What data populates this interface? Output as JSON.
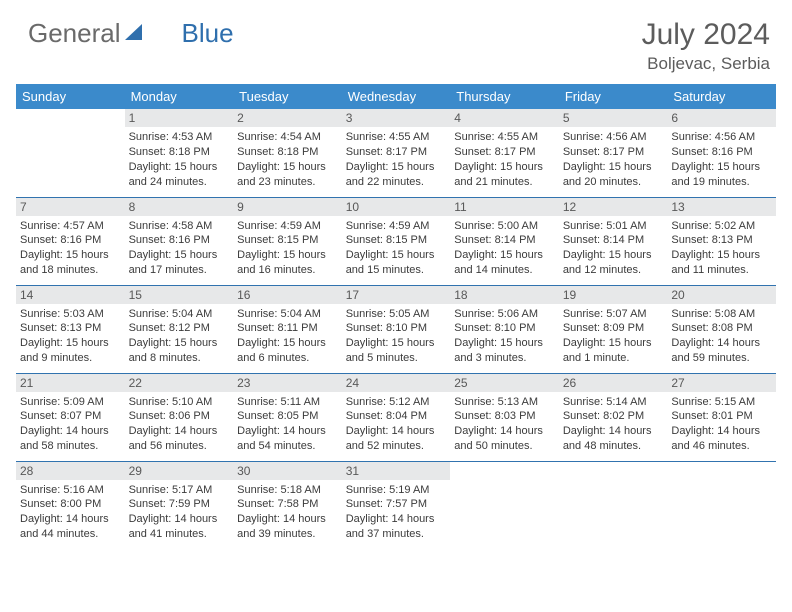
{
  "logo": {
    "word1": "General",
    "word2": "Blue"
  },
  "title": "July 2024",
  "location": "Boljevac, Serbia",
  "colors": {
    "header_bg": "#3b8acb",
    "header_fg": "#ffffff",
    "daynum_bg": "#e7e8e9",
    "daynum_fg": "#585858",
    "row_border": "#3173af",
    "text": "#3b3b3b",
    "title_fg": "#5c5c5c",
    "logo_gray": "#6a6a6a",
    "logo_blue": "#2f6fad"
  },
  "daysOfWeek": [
    "Sunday",
    "Monday",
    "Tuesday",
    "Wednesday",
    "Thursday",
    "Friday",
    "Saturday"
  ],
  "weeks": [
    [
      {
        "day": "",
        "sunrise": "",
        "sunset": "",
        "daylight1": "",
        "daylight2": ""
      },
      {
        "day": "1",
        "sunrise": "Sunrise: 4:53 AM",
        "sunset": "Sunset: 8:18 PM",
        "daylight1": "Daylight: 15 hours",
        "daylight2": "and 24 minutes."
      },
      {
        "day": "2",
        "sunrise": "Sunrise: 4:54 AM",
        "sunset": "Sunset: 8:18 PM",
        "daylight1": "Daylight: 15 hours",
        "daylight2": "and 23 minutes."
      },
      {
        "day": "3",
        "sunrise": "Sunrise: 4:55 AM",
        "sunset": "Sunset: 8:17 PM",
        "daylight1": "Daylight: 15 hours",
        "daylight2": "and 22 minutes."
      },
      {
        "day": "4",
        "sunrise": "Sunrise: 4:55 AM",
        "sunset": "Sunset: 8:17 PM",
        "daylight1": "Daylight: 15 hours",
        "daylight2": "and 21 minutes."
      },
      {
        "day": "5",
        "sunrise": "Sunrise: 4:56 AM",
        "sunset": "Sunset: 8:17 PM",
        "daylight1": "Daylight: 15 hours",
        "daylight2": "and 20 minutes."
      },
      {
        "day": "6",
        "sunrise": "Sunrise: 4:56 AM",
        "sunset": "Sunset: 8:16 PM",
        "daylight1": "Daylight: 15 hours",
        "daylight2": "and 19 minutes."
      }
    ],
    [
      {
        "day": "7",
        "sunrise": "Sunrise: 4:57 AM",
        "sunset": "Sunset: 8:16 PM",
        "daylight1": "Daylight: 15 hours",
        "daylight2": "and 18 minutes."
      },
      {
        "day": "8",
        "sunrise": "Sunrise: 4:58 AM",
        "sunset": "Sunset: 8:16 PM",
        "daylight1": "Daylight: 15 hours",
        "daylight2": "and 17 minutes."
      },
      {
        "day": "9",
        "sunrise": "Sunrise: 4:59 AM",
        "sunset": "Sunset: 8:15 PM",
        "daylight1": "Daylight: 15 hours",
        "daylight2": "and 16 minutes."
      },
      {
        "day": "10",
        "sunrise": "Sunrise: 4:59 AM",
        "sunset": "Sunset: 8:15 PM",
        "daylight1": "Daylight: 15 hours",
        "daylight2": "and 15 minutes."
      },
      {
        "day": "11",
        "sunrise": "Sunrise: 5:00 AM",
        "sunset": "Sunset: 8:14 PM",
        "daylight1": "Daylight: 15 hours",
        "daylight2": "and 14 minutes."
      },
      {
        "day": "12",
        "sunrise": "Sunrise: 5:01 AM",
        "sunset": "Sunset: 8:14 PM",
        "daylight1": "Daylight: 15 hours",
        "daylight2": "and 12 minutes."
      },
      {
        "day": "13",
        "sunrise": "Sunrise: 5:02 AM",
        "sunset": "Sunset: 8:13 PM",
        "daylight1": "Daylight: 15 hours",
        "daylight2": "and 11 minutes."
      }
    ],
    [
      {
        "day": "14",
        "sunrise": "Sunrise: 5:03 AM",
        "sunset": "Sunset: 8:13 PM",
        "daylight1": "Daylight: 15 hours",
        "daylight2": "and 9 minutes."
      },
      {
        "day": "15",
        "sunrise": "Sunrise: 5:04 AM",
        "sunset": "Sunset: 8:12 PM",
        "daylight1": "Daylight: 15 hours",
        "daylight2": "and 8 minutes."
      },
      {
        "day": "16",
        "sunrise": "Sunrise: 5:04 AM",
        "sunset": "Sunset: 8:11 PM",
        "daylight1": "Daylight: 15 hours",
        "daylight2": "and 6 minutes."
      },
      {
        "day": "17",
        "sunrise": "Sunrise: 5:05 AM",
        "sunset": "Sunset: 8:10 PM",
        "daylight1": "Daylight: 15 hours",
        "daylight2": "and 5 minutes."
      },
      {
        "day": "18",
        "sunrise": "Sunrise: 5:06 AM",
        "sunset": "Sunset: 8:10 PM",
        "daylight1": "Daylight: 15 hours",
        "daylight2": "and 3 minutes."
      },
      {
        "day": "19",
        "sunrise": "Sunrise: 5:07 AM",
        "sunset": "Sunset: 8:09 PM",
        "daylight1": "Daylight: 15 hours",
        "daylight2": "and 1 minute."
      },
      {
        "day": "20",
        "sunrise": "Sunrise: 5:08 AM",
        "sunset": "Sunset: 8:08 PM",
        "daylight1": "Daylight: 14 hours",
        "daylight2": "and 59 minutes."
      }
    ],
    [
      {
        "day": "21",
        "sunrise": "Sunrise: 5:09 AM",
        "sunset": "Sunset: 8:07 PM",
        "daylight1": "Daylight: 14 hours",
        "daylight2": "and 58 minutes."
      },
      {
        "day": "22",
        "sunrise": "Sunrise: 5:10 AM",
        "sunset": "Sunset: 8:06 PM",
        "daylight1": "Daylight: 14 hours",
        "daylight2": "and 56 minutes."
      },
      {
        "day": "23",
        "sunrise": "Sunrise: 5:11 AM",
        "sunset": "Sunset: 8:05 PM",
        "daylight1": "Daylight: 14 hours",
        "daylight2": "and 54 minutes."
      },
      {
        "day": "24",
        "sunrise": "Sunrise: 5:12 AM",
        "sunset": "Sunset: 8:04 PM",
        "daylight1": "Daylight: 14 hours",
        "daylight2": "and 52 minutes."
      },
      {
        "day": "25",
        "sunrise": "Sunrise: 5:13 AM",
        "sunset": "Sunset: 8:03 PM",
        "daylight1": "Daylight: 14 hours",
        "daylight2": "and 50 minutes."
      },
      {
        "day": "26",
        "sunrise": "Sunrise: 5:14 AM",
        "sunset": "Sunset: 8:02 PM",
        "daylight1": "Daylight: 14 hours",
        "daylight2": "and 48 minutes."
      },
      {
        "day": "27",
        "sunrise": "Sunrise: 5:15 AM",
        "sunset": "Sunset: 8:01 PM",
        "daylight1": "Daylight: 14 hours",
        "daylight2": "and 46 minutes."
      }
    ],
    [
      {
        "day": "28",
        "sunrise": "Sunrise: 5:16 AM",
        "sunset": "Sunset: 8:00 PM",
        "daylight1": "Daylight: 14 hours",
        "daylight2": "and 44 minutes."
      },
      {
        "day": "29",
        "sunrise": "Sunrise: 5:17 AM",
        "sunset": "Sunset: 7:59 PM",
        "daylight1": "Daylight: 14 hours",
        "daylight2": "and 41 minutes."
      },
      {
        "day": "30",
        "sunrise": "Sunrise: 5:18 AM",
        "sunset": "Sunset: 7:58 PM",
        "daylight1": "Daylight: 14 hours",
        "daylight2": "and 39 minutes."
      },
      {
        "day": "31",
        "sunrise": "Sunrise: 5:19 AM",
        "sunset": "Sunset: 7:57 PM",
        "daylight1": "Daylight: 14 hours",
        "daylight2": "and 37 minutes."
      },
      {
        "day": "",
        "sunrise": "",
        "sunset": "",
        "daylight1": "",
        "daylight2": ""
      },
      {
        "day": "",
        "sunrise": "",
        "sunset": "",
        "daylight1": "",
        "daylight2": ""
      },
      {
        "day": "",
        "sunrise": "",
        "sunset": "",
        "daylight1": "",
        "daylight2": ""
      }
    ]
  ]
}
